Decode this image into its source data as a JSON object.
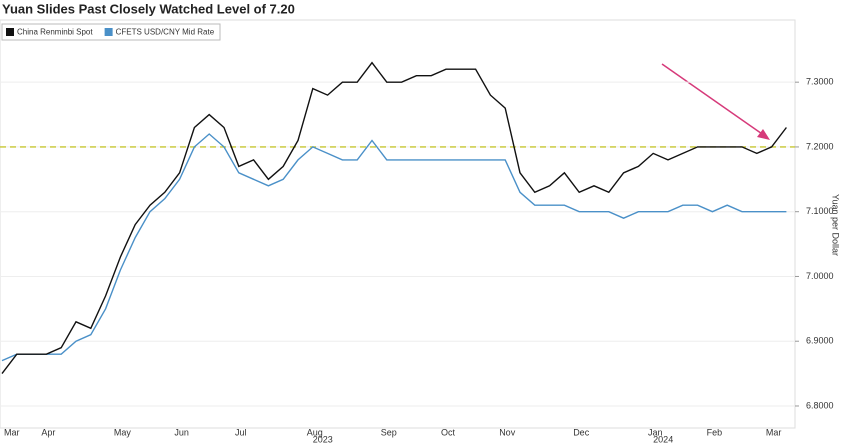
{
  "chart_data": {
    "type": "line",
    "title": "Yuan Slides Past Closely Watched Level of 7.20",
    "y_label": "Yuan per Dollar",
    "categories": [
      "Mar",
      null,
      null,
      "Apr",
      null,
      null,
      null,
      null,
      "May",
      null,
      null,
      null,
      "Jun",
      null,
      null,
      null,
      "Jul",
      null,
      null,
      null,
      null,
      "Aug",
      null,
      null,
      null,
      null,
      "Sep",
      null,
      null,
      null,
      "Oct",
      null,
      null,
      null,
      "Nov",
      null,
      null,
      null,
      null,
      "Dec",
      null,
      null,
      null,
      null,
      "Jan",
      null,
      null,
      null,
      "Feb",
      null,
      null,
      null,
      "Mar",
      null
    ],
    "years": [
      "2023",
      "2024"
    ],
    "series": [
      {
        "name": "China Renminbi Spot",
        "color": "#111111",
        "values": [
          6.85,
          6.88,
          6.88,
          6.88,
          6.89,
          6.93,
          6.92,
          6.97,
          7.03,
          7.08,
          7.11,
          7.13,
          7.16,
          7.23,
          7.25,
          7.23,
          7.17,
          7.18,
          7.15,
          7.17,
          7.21,
          7.29,
          7.28,
          7.3,
          7.3,
          7.33,
          7.3,
          7.3,
          7.31,
          7.31,
          7.32,
          7.32,
          7.32,
          7.28,
          7.26,
          7.16,
          7.13,
          7.14,
          7.16,
          7.13,
          7.14,
          7.13,
          7.16,
          7.17,
          7.19,
          7.18,
          7.19,
          7.2,
          7.2,
          7.2,
          7.2,
          7.19,
          7.2,
          7.23
        ]
      },
      {
        "name": "CFETS USD/CNY Mid Rate",
        "color": "#4a90c8",
        "values": [
          6.87,
          6.88,
          6.88,
          6.88,
          6.88,
          6.9,
          6.91,
          6.95,
          7.01,
          7.06,
          7.1,
          7.12,
          7.15,
          7.2,
          7.22,
          7.2,
          7.16,
          7.15,
          7.14,
          7.15,
          7.18,
          7.2,
          7.19,
          7.18,
          7.18,
          7.21,
          7.18,
          7.18,
          7.18,
          7.18,
          7.18,
          7.18,
          7.18,
          7.18,
          7.18,
          7.13,
          7.11,
          7.11,
          7.11,
          7.1,
          7.1,
          7.1,
          7.09,
          7.1,
          7.1,
          7.1,
          7.11,
          7.11,
          7.1,
          7.11,
          7.1,
          7.1,
          7.1,
          7.1
        ]
      }
    ],
    "ylim": [
      6.766,
      7.396
    ],
    "yticks": [
      {
        "value": 6.8,
        "label": "6.8000"
      },
      {
        "value": 6.9,
        "label": "6.9000"
      },
      {
        "value": 7.0,
        "label": "7.0000"
      },
      {
        "value": 7.1,
        "label": "7.1000"
      },
      {
        "value": 7.2,
        "label": "7.2000"
      },
      {
        "value": 7.3,
        "label": "7.3000"
      }
    ],
    "reference_line": {
      "value": 7.2,
      "color": "#c8c832"
    },
    "grid": true
  }
}
